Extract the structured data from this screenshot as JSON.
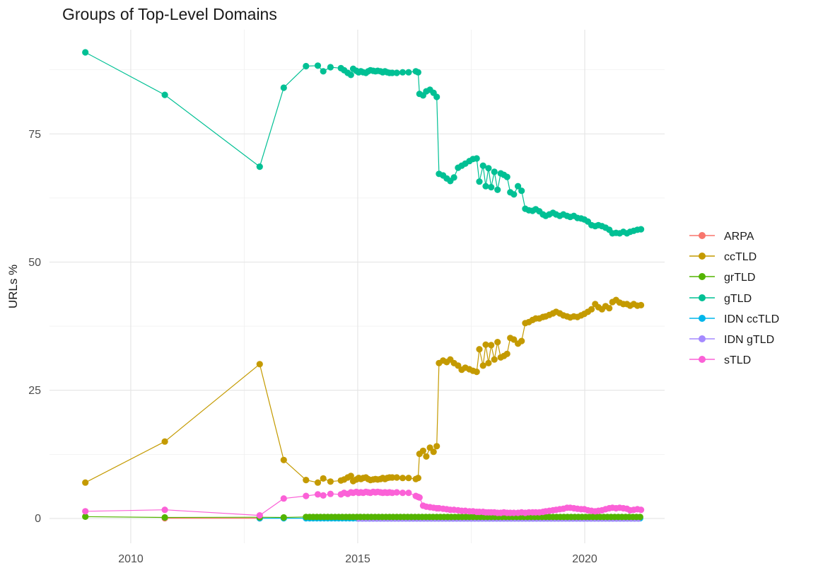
{
  "title": "Groups of Top-Level Domains",
  "axes": {
    "y_label": "URLs %",
    "y_ticks": [
      {
        "v": 0,
        "label": "0"
      },
      {
        "v": 25,
        "label": "25"
      },
      {
        "v": 50,
        "label": "50"
      },
      {
        "v": 75,
        "label": "75"
      }
    ],
    "y_minor": [
      12.5,
      37.5,
      62.5,
      87.5
    ],
    "x_ticks": [
      {
        "v": 2010,
        "label": "2010"
      },
      {
        "v": 2015,
        "label": "2015"
      },
      {
        "v": 2020,
        "label": "2020"
      }
    ],
    "x_minor": [
      2012.5,
      2017.5
    ]
  },
  "legend": {
    "entries": [
      {
        "label": "ARPA",
        "color": "#F8766D"
      },
      {
        "label": "ccTLD",
        "color": "#C49A00"
      },
      {
        "label": "grTLD",
        "color": "#53B400"
      },
      {
        "label": "gTLD",
        "color": "#00C094"
      },
      {
        "label": "IDN ccTLD",
        "color": "#00B6EB"
      },
      {
        "label": "IDN gTLD",
        "color": "#A58AFF"
      },
      {
        "label": "sTLD",
        "color": "#FB61D7"
      }
    ]
  },
  "chart_data": {
    "type": "line",
    "title": "Groups of Top-Level Domains",
    "xlabel": "",
    "ylabel": "URLs %",
    "xlim": [
      2008.21,
      2021.76
    ],
    "ylim": [
      -4.83,
      95.31
    ],
    "grid": true,
    "legend_position": "right",
    "x": [
      2009.0,
      2010.75,
      2012.84,
      2013.37,
      2013.86,
      2014.12,
      2014.24,
      2014.4,
      2014.63,
      2014.7,
      2014.78,
      2014.85,
      2014.9,
      2014.97,
      2015.02,
      2015.07,
      2015.12,
      2015.18,
      2015.23,
      2015.28,
      2015.34,
      2015.39,
      2015.44,
      2015.5,
      2015.55,
      2015.6,
      2015.65,
      2015.7,
      2015.76,
      2015.86,
      2015.99,
      2016.12,
      2016.28,
      2016.33,
      2016.36,
      2016.44,
      2016.51,
      2016.59,
      2016.67,
      2016.74,
      2016.79,
      2016.88,
      2016.96,
      2017.04,
      2017.12,
      2017.21,
      2017.29,
      2017.37,
      2017.46,
      2017.54,
      2017.62,
      2017.68,
      2017.76,
      2017.82,
      2017.88,
      2017.94,
      2018.01,
      2018.08,
      2018.15,
      2018.22,
      2018.29,
      2018.36,
      2018.44,
      2018.53,
      2018.61,
      2018.69,
      2018.77,
      2018.85,
      2018.92,
      2019.0,
      2019.08,
      2019.14,
      2019.22,
      2019.3,
      2019.37,
      2019.45,
      2019.53,
      2019.61,
      2019.68,
      2019.76,
      2019.84,
      2019.92,
      2019.99,
      2020.07,
      2020.15,
      2020.23,
      2020.3,
      2020.38,
      2020.46,
      2020.54,
      2020.61,
      2020.69,
      2020.77,
      2020.85,
      2020.93,
      2021.0,
      2021.08,
      2021.16,
      2021.24
    ],
    "series": [
      {
        "name": "ARPA",
        "color": "#F8766D",
        "points": [
          [
            2010.75,
            0.05
          ],
          [
            2012.84,
            0.05
          ]
        ]
      },
      {
        "name": "IDN ccTLD",
        "color": "#00B6EB",
        "points": [
          [
            2012.84,
            0.05
          ],
          [
            2013.37,
            0.05
          ]
        ],
        "runs": [
          {
            "from": 2013.86,
            "to": 2021.24,
            "step": 0.08,
            "value": 0.05
          }
        ]
      },
      {
        "name": "IDN gTLD",
        "color": "#A58AFF",
        "runs": [
          {
            "from": 2015.02,
            "to": 2021.24,
            "step": 0.08,
            "value": 0.0
          }
        ]
      },
      {
        "name": "ccTLD",
        "color": "#C49A00",
        "y": [
          7.0,
          15.0,
          30.1,
          11.4,
          7.5,
          7.0,
          7.8,
          7.2,
          7.4,
          7.6,
          8.0,
          8.3,
          7.3,
          7.6,
          7.9,
          7.7,
          7.9,
          8.0,
          7.7,
          7.5,
          7.6,
          7.7,
          7.6,
          7.7,
          7.9,
          7.7,
          7.9,
          8.0,
          8.0,
          8.0,
          7.9,
          7.9,
          7.7,
          7.9,
          12.6,
          13.2,
          12.1,
          13.8,
          13.0,
          14.1,
          30.3,
          30.8,
          30.5,
          31.0,
          30.3,
          29.8,
          29.0,
          29.4,
          29.1,
          28.8,
          28.6,
          33.0,
          29.8,
          33.9,
          30.3,
          33.8,
          31.0,
          34.4,
          31.4,
          31.7,
          32.1,
          35.2,
          34.9,
          34.1,
          34.6,
          38.1,
          38.3,
          38.7,
          39.0,
          39.0,
          39.3,
          39.4,
          39.7,
          40.0,
          40.3,
          40.0,
          39.6,
          39.4,
          39.2,
          39.4,
          39.3,
          39.6,
          39.9,
          40.3,
          40.8,
          41.8,
          41.2,
          40.8,
          41.4,
          41.0,
          42.2,
          42.6,
          42.1,
          41.8,
          41.8,
          41.5,
          41.8,
          41.5,
          41.6
        ]
      },
      {
        "name": "gTLD",
        "color": "#00C094",
        "y": [
          90.9,
          82.6,
          68.6,
          84.0,
          88.2,
          88.3,
          87.2,
          88.0,
          87.8,
          87.4,
          86.9,
          86.5,
          87.7,
          87.3,
          87.0,
          87.2,
          87.0,
          86.9,
          87.2,
          87.4,
          87.3,
          87.2,
          87.3,
          87.2,
          87.0,
          87.2,
          87.0,
          86.9,
          86.9,
          86.9,
          87.0,
          87.0,
          87.2,
          87.0,
          82.8,
          82.5,
          83.3,
          83.6,
          83.0,
          82.2,
          67.2,
          66.9,
          66.3,
          65.8,
          66.5,
          68.4,
          68.8,
          69.2,
          69.7,
          70.1,
          70.2,
          65.7,
          68.8,
          64.8,
          68.3,
          64.6,
          67.6,
          64.1,
          67.3,
          67.0,
          66.6,
          63.6,
          63.2,
          64.8,
          63.9,
          60.4,
          60.1,
          60.0,
          60.3,
          59.9,
          59.3,
          59.0,
          59.3,
          59.6,
          59.3,
          59.0,
          59.3,
          59.0,
          58.8,
          59.0,
          58.6,
          58.5,
          58.3,
          57.9,
          57.2,
          57.0,
          57.2,
          57.0,
          56.7,
          56.3,
          55.6,
          55.7,
          55.6,
          55.9,
          55.6,
          55.9,
          56.1,
          56.3,
          56.4
        ]
      },
      {
        "name": "grTLD",
        "color": "#53B400",
        "points": [
          [
            2009.0,
            0.35
          ],
          [
            2010.75,
            0.2
          ],
          [
            2012.84,
            0.25
          ],
          [
            2013.37,
            0.2
          ]
        ],
        "runs": [
          {
            "from": 2013.86,
            "to": 2021.24,
            "step": 0.08,
            "value": 0.3
          }
        ]
      },
      {
        "name": "sTLD",
        "color": "#FB61D7",
        "y": [
          1.4,
          1.7,
          0.6,
          3.9,
          4.4,
          4.7,
          4.5,
          4.8,
          4.7,
          5.0,
          4.8,
          5.1,
          5.0,
          5.2,
          5.0,
          5.1,
          5.0,
          5.2,
          5.1,
          5.0,
          5.2,
          5.1,
          5.2,
          5.1,
          5.0,
          5.1,
          5.0,
          5.1,
          5.0,
          5.1,
          5.0,
          5.0,
          4.4,
          4.2,
          4.1,
          2.5,
          2.3,
          2.2,
          2.1,
          2.0,
          2.0,
          1.9,
          1.8,
          1.7,
          1.7,
          1.6,
          1.5,
          1.5,
          1.4,
          1.4,
          1.3,
          1.3,
          1.3,
          1.2,
          1.2,
          1.2,
          1.2,
          1.1,
          1.1,
          1.2,
          1.1,
          1.1,
          1.1,
          1.1,
          1.2,
          1.1,
          1.2,
          1.2,
          1.2,
          1.2,
          1.3,
          1.4,
          1.5,
          1.6,
          1.7,
          1.8,
          1.9,
          2.1,
          2.1,
          2.0,
          1.9,
          1.8,
          1.8,
          1.6,
          1.5,
          1.4,
          1.5,
          1.6,
          1.8,
          2.0,
          2.1,
          2.0,
          2.1,
          2.0,
          1.9,
          1.6,
          1.7,
          1.8,
          1.7
        ]
      }
    ]
  }
}
